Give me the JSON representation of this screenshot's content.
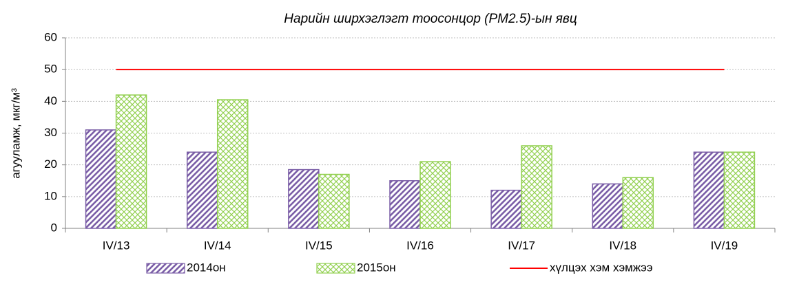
{
  "chart_data": {
    "type": "bar",
    "title": "Нарийн ширхэглэгт тоосонцор (PM2.5)-ын явц",
    "y_label": "агууламж, мкг/м³",
    "categories": [
      "IV/13",
      "IV/14",
      "IV/15",
      "IV/16",
      "IV/17",
      "IV/18",
      "IV/19"
    ],
    "series": [
      {
        "name": "2014он",
        "type": "bar",
        "color": "#7b5ea7",
        "pattern": "stripes",
        "values": [
          31,
          24,
          18.5,
          15,
          12,
          14,
          24
        ]
      },
      {
        "name": "2015он",
        "type": "bar",
        "color": "#92d050",
        "pattern": "crosshatch",
        "values": [
          42,
          40.5,
          17,
          21,
          26,
          16,
          24
        ]
      },
      {
        "name": "хүлцэх хэм хэмжээ",
        "type": "line",
        "color": "#ff0000",
        "values": [
          50,
          50,
          50,
          50,
          50,
          50,
          50
        ]
      }
    ],
    "ylim": [
      0,
      60
    ],
    "yticks": [
      0,
      10,
      20,
      30,
      40,
      50,
      60
    ],
    "grid": true,
    "legend": "bottom"
  }
}
